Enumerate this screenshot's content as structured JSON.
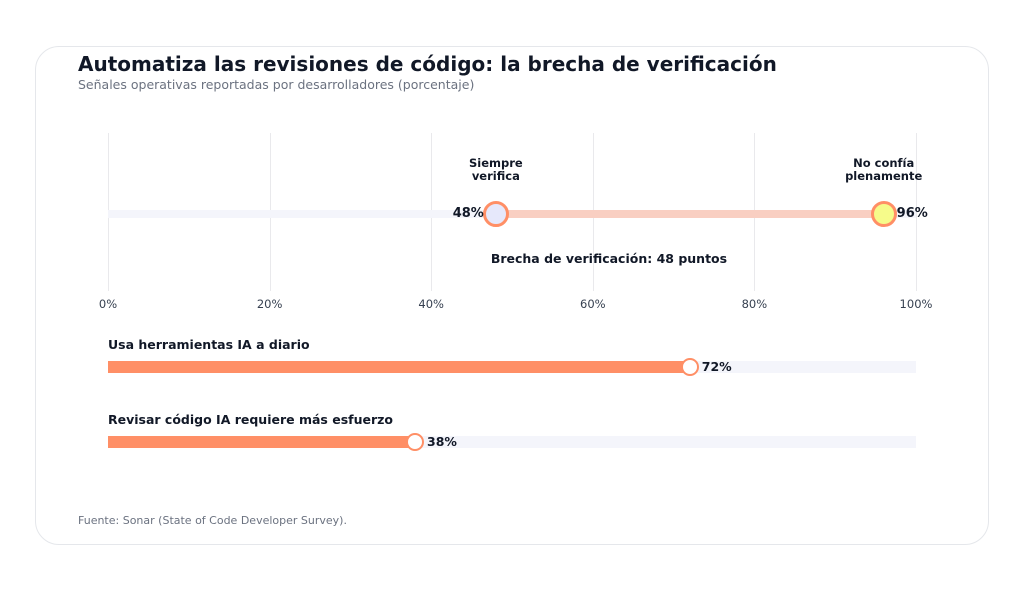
{
  "title": "Automatiza las revisiones de código: la brecha de verificación",
  "subtitle": "Señales operativas reportadas por desarrolladores (porcentaje)",
  "source": "Fuente: Sonar (State of Code Developer Survey).",
  "colors": {
    "accent": "#ff8f66",
    "gap_line": "#f9cfc2",
    "track": "#f4f5fb",
    "dot_left": "#e6e8fb",
    "dot_right": "#f6fb8a"
  },
  "chart_data": [
    {
      "type": "dumbbell",
      "xlim": [
        0,
        100
      ],
      "ticks": [
        "0%",
        "20%",
        "40%",
        "60%",
        "80%",
        "100%"
      ],
      "tick_values": [
        0,
        20,
        40,
        60,
        80,
        100
      ],
      "grid": true,
      "points": [
        {
          "label": "Siempre\nverifica",
          "value": 48,
          "value_label": "48%"
        },
        {
          "label": "No confía\nplenamente",
          "value": 96,
          "value_label": "96%"
        }
      ],
      "annotation": "Brecha de verificación: 48 puntos"
    },
    {
      "type": "bar",
      "xlim": [
        0,
        100
      ],
      "bars": [
        {
          "label": "Usa herramientas IA a diario",
          "value": 72,
          "value_label": "72%"
        },
        {
          "label": "Revisar código IA requiere más esfuerzo",
          "value": 38,
          "value_label": "38%"
        }
      ]
    }
  ]
}
